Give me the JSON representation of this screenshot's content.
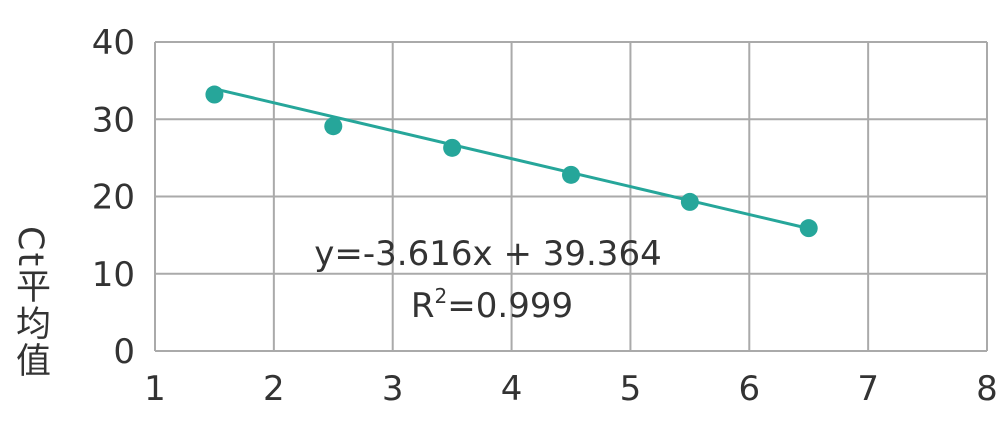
{
  "chart_data": {
    "type": "scatter",
    "title": "",
    "xlabel": "",
    "ylabel": "Ct平均值",
    "xlim": [
      1,
      8
    ],
    "ylim": [
      0,
      40
    ],
    "x_ticks": [
      "1",
      "2",
      "3",
      "4",
      "5",
      "6",
      "7",
      "8"
    ],
    "y_ticks": [
      "0",
      "10",
      "20",
      "30",
      "40"
    ],
    "grid": true,
    "legend": "none",
    "series": [
      {
        "x": [
          1.5,
          2.5,
          3.5,
          4.5,
          5.5,
          6.5
        ],
        "y": [
          33.2,
          29.1,
          26.3,
          22.8,
          19.3,
          15.9
        ]
      }
    ],
    "trendline": {
      "slope": -3.616,
      "intercept": 39.364,
      "x_range": [
        1.5,
        6.5
      ]
    },
    "annotations": {
      "equation": "y=-3.616x + 39.364",
      "r2_prefix": "R",
      "r2_sup": "2",
      "r2_value": "=0.999"
    },
    "colors": {
      "marker": "#26a69a",
      "line": "#26a69a",
      "grid": "#aaaaaa"
    }
  }
}
